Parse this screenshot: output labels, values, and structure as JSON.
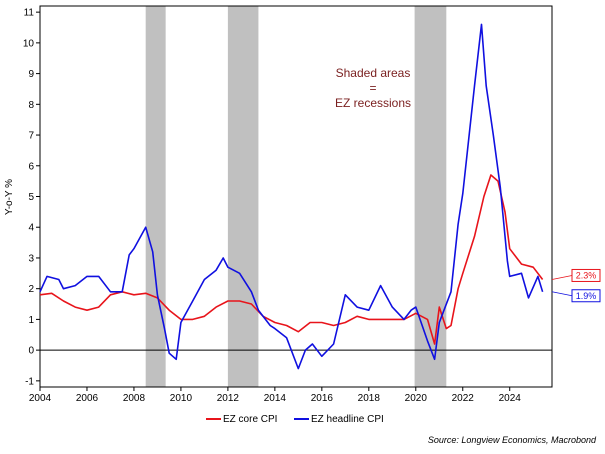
{
  "chart_data": {
    "type": "line",
    "ylabel": "Y-o-Y %",
    "xlim": [
      2004,
      2025.8
    ],
    "ylim": [
      -1.2,
      11.2
    ],
    "y_ticks": [
      -1,
      0,
      1,
      2,
      3,
      4,
      5,
      6,
      7,
      8,
      9,
      10,
      11
    ],
    "x_ticks": [
      2004,
      2006,
      2008,
      2010,
      2012,
      2014,
      2016,
      2018,
      2020,
      2022,
      2024
    ],
    "zero_line": true,
    "grid": false,
    "annotation": [
      "Shaded areas",
      "=",
      "EZ recessions"
    ],
    "recessions": [
      [
        2008.5,
        2009.35
      ],
      [
        2012.0,
        2013.3
      ],
      [
        2019.95,
        2021.3
      ]
    ],
    "legend_placement": "bottom-center",
    "end_labels": [
      {
        "series": "EZ core CPI",
        "text": "2.3%",
        "color": "#e8141b"
      },
      {
        "series": "EZ headline CPI",
        "text": "1.9%",
        "color": "#1010e0"
      }
    ],
    "source": "Source: Longview Economics, Macrobond",
    "series": [
      {
        "name": "EZ core CPI",
        "color": "#e8141b",
        "points": [
          [
            2004.0,
            1.8
          ],
          [
            2004.5,
            1.85
          ],
          [
            2005.0,
            1.6
          ],
          [
            2005.5,
            1.4
          ],
          [
            2006.0,
            1.3
          ],
          [
            2006.5,
            1.4
          ],
          [
            2007.0,
            1.8
          ],
          [
            2007.5,
            1.9
          ],
          [
            2008.0,
            1.8
          ],
          [
            2008.5,
            1.85
          ],
          [
            2009.0,
            1.7
          ],
          [
            2009.5,
            1.3
          ],
          [
            2010.0,
            1.0
          ],
          [
            2010.5,
            1.0
          ],
          [
            2011.0,
            1.1
          ],
          [
            2011.5,
            1.4
          ],
          [
            2012.0,
            1.6
          ],
          [
            2012.5,
            1.6
          ],
          [
            2013.0,
            1.5
          ],
          [
            2013.5,
            1.1
          ],
          [
            2014.0,
            0.9
          ],
          [
            2014.5,
            0.8
          ],
          [
            2015.0,
            0.6
          ],
          [
            2015.5,
            0.9
          ],
          [
            2016.0,
            0.9
          ],
          [
            2016.5,
            0.8
          ],
          [
            2017.0,
            0.9
          ],
          [
            2017.5,
            1.1
          ],
          [
            2018.0,
            1.0
          ],
          [
            2018.5,
            1.0
          ],
          [
            2019.0,
            1.0
          ],
          [
            2019.5,
            1.0
          ],
          [
            2020.0,
            1.2
          ],
          [
            2020.5,
            1.0
          ],
          [
            2020.8,
            0.2
          ],
          [
            2021.0,
            1.4
          ],
          [
            2021.3,
            0.7
          ],
          [
            2021.5,
            0.8
          ],
          [
            2021.8,
            2.0
          ],
          [
            2022.0,
            2.5
          ],
          [
            2022.5,
            3.7
          ],
          [
            2022.9,
            5.0
          ],
          [
            2023.2,
            5.7
          ],
          [
            2023.5,
            5.5
          ],
          [
            2023.8,
            4.5
          ],
          [
            2024.0,
            3.3
          ],
          [
            2024.5,
            2.8
          ],
          [
            2025.0,
            2.7
          ],
          [
            2025.4,
            2.3
          ]
        ]
      },
      {
        "name": "EZ headline CPI",
        "color": "#1010e0",
        "points": [
          [
            2004.0,
            1.9
          ],
          [
            2004.3,
            2.4
          ],
          [
            2004.8,
            2.3
          ],
          [
            2005.0,
            2.0
          ],
          [
            2005.5,
            2.1
          ],
          [
            2006.0,
            2.4
          ],
          [
            2006.5,
            2.4
          ],
          [
            2007.0,
            1.9
          ],
          [
            2007.5,
            1.9
          ],
          [
            2007.8,
            3.1
          ],
          [
            2008.0,
            3.3
          ],
          [
            2008.5,
            4.0
          ],
          [
            2008.8,
            3.2
          ],
          [
            2009.0,
            1.8
          ],
          [
            2009.3,
            0.7
          ],
          [
            2009.5,
            -0.1
          ],
          [
            2009.8,
            -0.3
          ],
          [
            2010.0,
            0.9
          ],
          [
            2010.5,
            1.6
          ],
          [
            2011.0,
            2.3
          ],
          [
            2011.5,
            2.6
          ],
          [
            2011.8,
            3.0
          ],
          [
            2012.0,
            2.7
          ],
          [
            2012.5,
            2.5
          ],
          [
            2013.0,
            1.9
          ],
          [
            2013.3,
            1.3
          ],
          [
            2013.8,
            0.8
          ],
          [
            2014.0,
            0.7
          ],
          [
            2014.5,
            0.4
          ],
          [
            2015.0,
            -0.6
          ],
          [
            2015.3,
            0.0
          ],
          [
            2015.6,
            0.2
          ],
          [
            2016.0,
            -0.2
          ],
          [
            2016.5,
            0.2
          ],
          [
            2017.0,
            1.8
          ],
          [
            2017.5,
            1.4
          ],
          [
            2018.0,
            1.3
          ],
          [
            2018.5,
            2.1
          ],
          [
            2019.0,
            1.4
          ],
          [
            2019.5,
            1.0
          ],
          [
            2019.8,
            1.3
          ],
          [
            2020.0,
            1.4
          ],
          [
            2020.5,
            0.3
          ],
          [
            2020.8,
            -0.3
          ],
          [
            2021.0,
            0.9
          ],
          [
            2021.5,
            1.9
          ],
          [
            2021.8,
            4.1
          ],
          [
            2022.0,
            5.1
          ],
          [
            2022.5,
            8.6
          ],
          [
            2022.8,
            10.6
          ],
          [
            2023.0,
            8.6
          ],
          [
            2023.3,
            7.0
          ],
          [
            2023.6,
            5.3
          ],
          [
            2023.9,
            2.9
          ],
          [
            2024.0,
            2.4
          ],
          [
            2024.5,
            2.5
          ],
          [
            2024.8,
            1.7
          ],
          [
            2025.2,
            2.4
          ],
          [
            2025.4,
            1.9
          ]
        ]
      }
    ]
  }
}
